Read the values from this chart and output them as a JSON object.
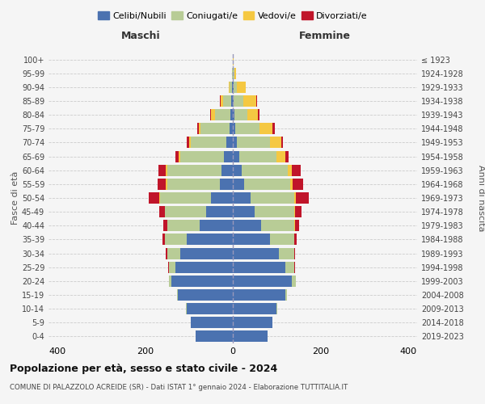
{
  "age_groups": [
    "0-4",
    "5-9",
    "10-14",
    "15-19",
    "20-24",
    "25-29",
    "30-34",
    "35-39",
    "40-44",
    "45-49",
    "50-54",
    "55-59",
    "60-64",
    "65-69",
    "70-74",
    "75-79",
    "80-84",
    "85-89",
    "90-94",
    "95-99",
    "100+"
  ],
  "birth_years": [
    "2019-2023",
    "2014-2018",
    "2009-2013",
    "2004-2008",
    "1999-2003",
    "1994-1998",
    "1989-1993",
    "1984-1988",
    "1979-1983",
    "1974-1978",
    "1969-1973",
    "1964-1968",
    "1959-1963",
    "1954-1958",
    "1949-1953",
    "1944-1948",
    "1939-1943",
    "1934-1938",
    "1929-1933",
    "1924-1928",
    "≤ 1923"
  ],
  "males": {
    "celibi": [
      85,
      95,
      105,
      125,
      140,
      130,
      120,
      105,
      75,
      60,
      50,
      30,
      25,
      20,
      15,
      8,
      5,
      4,
      2,
      0,
      0
    ],
    "coniugati": [
      0,
      0,
      2,
      3,
      5,
      15,
      30,
      50,
      75,
      95,
      115,
      120,
      125,
      100,
      80,
      65,
      35,
      18,
      5,
      2,
      0
    ],
    "vedovi": [
      0,
      0,
      0,
      0,
      0,
      0,
      0,
      0,
      0,
      0,
      2,
      2,
      2,
      3,
      5,
      5,
      10,
      5,
      2,
      0,
      0
    ],
    "divorziati": [
      0,
      0,
      0,
      0,
      0,
      2,
      2,
      5,
      8,
      12,
      25,
      20,
      18,
      8,
      5,
      3,
      2,
      2,
      0,
      0,
      0
    ]
  },
  "females": {
    "nubili": [
      80,
      90,
      100,
      120,
      135,
      120,
      105,
      85,
      65,
      50,
      40,
      25,
      20,
      15,
      10,
      6,
      3,
      2,
      1,
      0,
      0
    ],
    "coniugate": [
      0,
      0,
      2,
      4,
      8,
      20,
      35,
      55,
      75,
      90,
      100,
      105,
      105,
      85,
      75,
      55,
      30,
      22,
      8,
      3,
      0
    ],
    "vedove": [
      0,
      0,
      0,
      0,
      0,
      0,
      0,
      0,
      1,
      2,
      4,
      6,
      10,
      20,
      25,
      30,
      25,
      30,
      20,
      5,
      1
    ],
    "divorziate": [
      0,
      0,
      0,
      0,
      0,
      1,
      2,
      5,
      10,
      15,
      30,
      25,
      20,
      8,
      5,
      4,
      3,
      2,
      1,
      0,
      0
    ]
  },
  "colors": {
    "celibi": "#4B72B0",
    "coniugati": "#B8CC96",
    "vedovi": "#F5C842",
    "divorziati": "#C0152A"
  },
  "xlim": 420,
  "title": "Popolazione per età, sesso e stato civile - 2024",
  "subtitle": "COMUNE DI PALAZZOLO ACREIDE (SR) - Dati ISTAT 1° gennaio 2024 - Elaborazione TUTTITALIA.IT",
  "xlabel_left": "Maschi",
  "xlabel_right": "Femmine",
  "ylabel": "Fasce di età",
  "ylabel_right": "Anni di nascita",
  "bg_color": "#f5f5f5",
  "grid_color": "#cccccc"
}
